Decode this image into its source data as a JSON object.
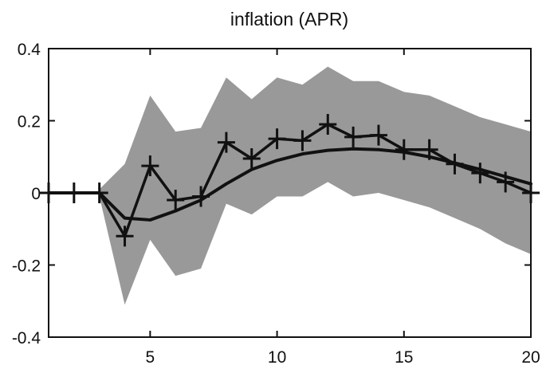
{
  "chart_data": {
    "type": "line",
    "title": "inflation (APR)",
    "xlabel": "",
    "ylabel": "",
    "xlim": [
      1,
      20
    ],
    "ylim": [
      -0.4,
      0.4
    ],
    "x_ticks": [
      5,
      10,
      15,
      20
    ],
    "y_ticks": [
      -0.4,
      -0.2,
      0,
      0.2,
      0.4
    ],
    "x_tick_labels": [
      "5",
      "10",
      "15",
      "20"
    ],
    "y_tick_labels": [
      "-0.4",
      "-0.2",
      "0",
      "0.2",
      "0.4"
    ],
    "grid": false,
    "legend": "none",
    "band": {
      "x": [
        3,
        4,
        5,
        6,
        7,
        8,
        9,
        10,
        11,
        12,
        13,
        14,
        15,
        16,
        17,
        18,
        19,
        20
      ],
      "upper": [
        0.01,
        0.08,
        0.27,
        0.17,
        0.18,
        0.32,
        0.26,
        0.32,
        0.3,
        0.35,
        0.31,
        0.31,
        0.28,
        0.27,
        0.24,
        0.21,
        0.19,
        0.17
      ],
      "lower": [
        -0.01,
        -0.31,
        -0.13,
        -0.23,
        -0.21,
        -0.03,
        -0.06,
        -0.01,
        -0.01,
        0.03,
        -0.01,
        0.0,
        -0.02,
        -0.04,
        -0.07,
        -0.1,
        -0.14,
        -0.17
      ],
      "color": "#999999"
    },
    "series": [
      {
        "kind": "smooth",
        "x": [
          1,
          2,
          3,
          4,
          5,
          6,
          7,
          8,
          9,
          10,
          11,
          12,
          13,
          14,
          15,
          16,
          17,
          18,
          19,
          20
        ],
        "y": [
          0,
          0,
          0,
          -0.07,
          -0.075,
          -0.05,
          -0.02,
          0.025,
          0.065,
          0.09,
          0.108,
          0.118,
          0.122,
          0.12,
          0.113,
          0.1,
          0.083,
          0.065,
          0.045,
          0.025
        ],
        "color": "#111111"
      },
      {
        "kind": "markers",
        "x": [
          1,
          2,
          3,
          4,
          5,
          6,
          7,
          8,
          9,
          10,
          11,
          12,
          13,
          14,
          15,
          16,
          17,
          18,
          19,
          20
        ],
        "y": [
          0,
          0,
          0,
          -0.12,
          0.075,
          -0.02,
          -0.01,
          0.14,
          0.095,
          0.15,
          0.145,
          0.19,
          0.155,
          0.16,
          0.12,
          0.12,
          0.08,
          0.055,
          0.03,
          0.0
        ],
        "color": "#111111"
      }
    ]
  }
}
